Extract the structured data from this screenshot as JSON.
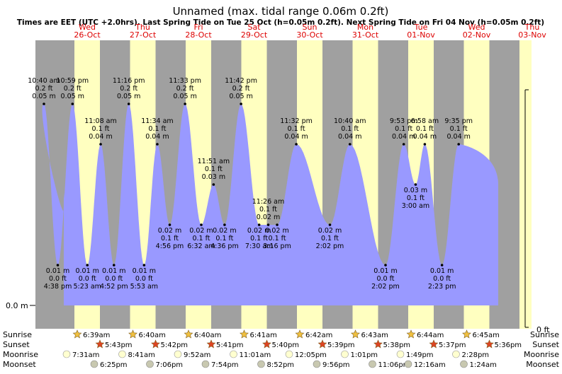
{
  "chart_data": {
    "type": "area",
    "title": "Unnamed (max. tidal range 0.06m 0.2ft)",
    "subtitle": "Times are EET (UTC +2.0hrs). Last Spring Tide on Tue 25 Oct (h=0.05m 0.2ft). Next Spring Tide on Fri 04 Nov (h=0.05m 0.2ft)",
    "y_axis_left_label": "0.0 m",
    "y_axis_right_label": "0 ft",
    "ylim_m": [
      0.0,
      0.065
    ],
    "days": [
      {
        "weekday": "Wed",
        "date": "26-Oct"
      },
      {
        "weekday": "Thu",
        "date": "27-Oct"
      },
      {
        "weekday": "Fri",
        "date": "28-Oct"
      },
      {
        "weekday": "Sat",
        "date": "29-Oct"
      },
      {
        "weekday": "Sun",
        "date": "30-Oct"
      },
      {
        "weekday": "Mon",
        "date": "31-Oct"
      },
      {
        "weekday": "Tue",
        "date": "01-Nov"
      },
      {
        "weekday": "Wed",
        "date": "02-Nov"
      },
      {
        "weekday": "Thu",
        "date": "03-Nov"
      }
    ],
    "series": [
      {
        "points": [
          {
            "t": "2022-10-25 22:40",
            "h": 0.05,
            "label": [
              "10:40 am",
              "0.2 ft",
              "0.05 m"
            ],
            "label_pos": "above"
          },
          {
            "t": "2022-10-26 04:38",
            "h": 0.01,
            "label": [
              "0.01 m",
              "0.0 ft",
              "4:38 pm"
            ],
            "label_pos": "below"
          },
          {
            "t": "2022-10-26 10:59",
            "h": 0.05,
            "label": [
              "10:59 pm",
              "0.2 ft",
              "0.05 m"
            ],
            "label_pos": "above"
          },
          {
            "t": "2022-10-26 17:23",
            "h": 0.01,
            "label": [
              "0.01 m",
              "0.0 ft",
              "5:23 am"
            ],
            "label_pos": "below"
          },
          {
            "t": "2022-10-26 23:08",
            "h": 0.04,
            "label": [
              "11:08 am",
              "0.1 ft",
              "0.04 m"
            ],
            "label_pos": "above"
          },
          {
            "t": "2022-10-27 04:52",
            "h": 0.01,
            "label": [
              "0.01 m",
              "0.0 ft",
              "4:52 pm"
            ],
            "label_pos": "below"
          },
          {
            "t": "2022-10-27 11:16",
            "h": 0.05,
            "label": [
              "11:16 pm",
              "0.2 ft",
              "0.05 m"
            ],
            "label_pos": "above"
          },
          {
            "t": "2022-10-27 17:53",
            "h": 0.01,
            "label": [
              "0.01 m",
              "0.0 ft",
              "5:53 am"
            ],
            "label_pos": "below"
          },
          {
            "t": "2022-10-27 23:34",
            "h": 0.04,
            "label": [
              "11:34 am",
              "0.1 ft",
              "0.04 m"
            ],
            "label_pos": "above"
          },
          {
            "t": "2022-10-28 04:56",
            "h": 0.02,
            "label": [
              "0.02 m",
              "0.1 ft",
              "4:56 pm"
            ],
            "label_pos": "below"
          },
          {
            "t": "2022-10-28 11:33",
            "h": 0.05,
            "label": [
              "11:33 pm",
              "0.2 ft",
              "0.05 m"
            ],
            "label_pos": "above"
          },
          {
            "t": "2022-10-28 18:32",
            "h": 0.02,
            "label": [
              "0.02 m",
              "0.1 ft",
              "6:32 am"
            ],
            "label_pos": "below"
          },
          {
            "t": "2022-10-28 23:51",
            "h": 0.03,
            "label": [
              "11:51 am",
              "0.1 ft",
              "0.03 m"
            ],
            "label_pos": "above"
          },
          {
            "t": "2022-10-29 04:36",
            "h": 0.02,
            "label": [
              "0.02 m",
              "0.1 ft",
              "4:36 pm"
            ],
            "label_pos": "below"
          },
          {
            "t": "2022-10-29 11:42",
            "h": 0.05,
            "label": [
              "11:42 pm",
              "0.2 ft",
              "0.05 m"
            ],
            "label_pos": "above"
          },
          {
            "t": "2022-10-29 19:30",
            "h": 0.02,
            "label": [
              "0.02 m",
              "0.1 ft",
              "7:30 am"
            ],
            "label_pos": "below"
          },
          {
            "t": "2022-10-29 23:26",
            "h": 0.02,
            "label": [
              "11:26 am",
              "0.1 ft",
              "0.02 m"
            ],
            "label_pos": "above"
          },
          {
            "t": "2022-10-30 03:16",
            "h": 0.02,
            "label": [
              "0.02 m",
              "0.1 ft",
              "3:16 pm"
            ],
            "label_pos": "below"
          },
          {
            "t": "2022-10-30 11:32",
            "h": 0.04,
            "label": [
              "11:32 pm",
              "0.1 ft",
              "0.04 m"
            ],
            "label_pos": "above"
          },
          {
            "t": "2022-10-31 02:02",
            "h": 0.02,
            "label": [
              "0.02 m",
              "0.1 ft",
              "2:02 pm"
            ],
            "label_pos": "below"
          },
          {
            "t": "2022-10-31 10:40",
            "h": 0.04,
            "label": [
              "10:40 am",
              "0.1 ft",
              "0.04 m"
            ],
            "label_pos": "above"
          },
          {
            "t": "2022-11-01 02:02",
            "h": 0.01,
            "label": [
              "0.01 m",
              "0.0 ft",
              "2:02 pm"
            ],
            "label_pos": "below"
          },
          {
            "t": "2022-11-01 09:53",
            "h": 0.04,
            "label": [
              "9:53 pm",
              "0.1 ft",
              "0.04 m"
            ],
            "label_pos": "above"
          },
          {
            "t": "2022-11-01 15:00",
            "h": 0.03,
            "label": [
              "0.03 m",
              "0.1 ft",
              "3:00 am"
            ],
            "label_pos": "below"
          },
          {
            "t": "2022-11-01 18:58",
            "h": 0.04,
            "label": [
              "6:58 am",
              "0.1 ft",
              "0.04 m"
            ],
            "label_pos": "above"
          },
          {
            "t": "2022-11-02 02:23",
            "h": 0.01,
            "label": [
              "0.01 m",
              "0.0 ft",
              "2:23 pm"
            ],
            "label_pos": "below"
          },
          {
            "t": "2022-11-02 09:35",
            "h": 0.04,
            "label": [
              "9:35 pm",
              "0.1 ft",
              "0.04 m"
            ],
            "label_pos": "above"
          }
        ]
      }
    ],
    "legend_rows": [
      {
        "left": "Sunrise",
        "right": "Sunrise"
      },
      {
        "left": "Sunset",
        "right": "Sunset"
      },
      {
        "left": "Moonrise",
        "right": "Moonrise"
      },
      {
        "left": "Moonset",
        "right": "Moonset"
      }
    ],
    "sun_moon": [
      {
        "sunrise": "6:39am",
        "sunset": "5:43pm",
        "moonrise": "7:31am",
        "moonset": "6:25pm"
      },
      {
        "sunrise": "6:40am",
        "sunset": "5:42pm",
        "moonrise": "8:41am",
        "moonset": "7:06pm"
      },
      {
        "sunrise": "6:40am",
        "sunset": "5:41pm",
        "moonrise": "9:52am",
        "moonset": "7:54pm"
      },
      {
        "sunrise": "6:41am",
        "sunset": "5:40pm",
        "moonrise": "11:01am",
        "moonset": "8:52pm"
      },
      {
        "sunrise": "6:42am",
        "sunset": "5:39pm",
        "moonrise": "12:05pm",
        "moonset": "9:56pm"
      },
      {
        "sunrise": "6:43am",
        "sunset": "5:38pm",
        "moonrise": "1:01pm",
        "moonset": "11:06pm"
      },
      {
        "sunrise": "6:44am",
        "sunset": "5:37pm",
        "moonrise": "1:49pm",
        "moonset": "12:16am"
      },
      {
        "sunrise": "6:45am",
        "sunset": "5:36pm",
        "moonrise": "2:28pm",
        "moonset": "1:24am"
      }
    ],
    "colors": {
      "night": "#a0a0a0",
      "day": "#ffffc0",
      "tide": "#9999ff",
      "day_header": "#dd0000",
      "text": "#000000",
      "sun_star": "#f0c040",
      "sunset_star": "#dd4422",
      "moonrise": "#ffffd0",
      "moonset": "#c8c8b0"
    }
  }
}
